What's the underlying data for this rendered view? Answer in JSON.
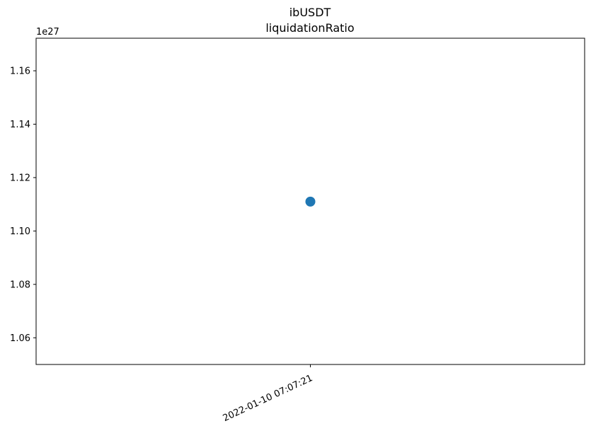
{
  "chart_data": {
    "type": "scatter",
    "title": "ibUSDT",
    "subtitle": "liquidationRatio",
    "xlabel": "",
    "ylabel": "",
    "y_offset_label": "1e27",
    "y_scale_multiplier": 1e+27,
    "ylim": [
      1.05,
      1.1722
    ],
    "y_ticks": [
      1.06,
      1.08,
      1.1,
      1.12,
      1.14,
      1.16
    ],
    "y_tick_labels": [
      "1.06",
      "1.08",
      "1.10",
      "1.12",
      "1.14",
      "1.16"
    ],
    "x_categories": [
      "2022-01-10 07:07:21"
    ],
    "points": [
      {
        "x": "2022-01-10 07:07:21",
        "y": 1.111
      }
    ],
    "marker_color": "#1f77b4",
    "grid": false,
    "legend": "none"
  }
}
